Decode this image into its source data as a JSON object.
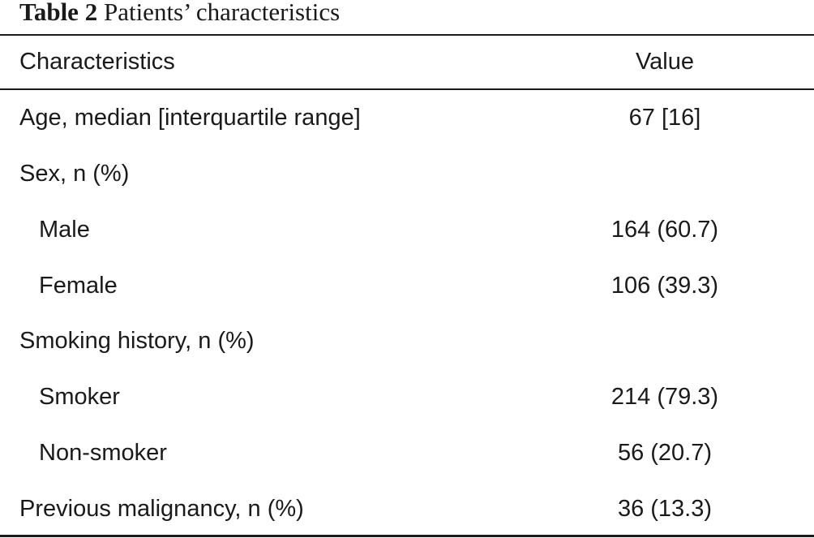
{
  "caption": {
    "label": "Table 2",
    "title": "Patients’ characteristics"
  },
  "table": {
    "headers": [
      "Characteristics",
      "Value"
    ],
    "rows": [
      {
        "label": "Age, median [interquartile range]",
        "value": "67 [16]"
      },
      {
        "label": "Sex, n (%)",
        "value": ""
      },
      {
        "label": "Male",
        "value": "164 (60.7)"
      },
      {
        "label": "Female",
        "value": "106 (39.3)"
      },
      {
        "label": "Smoking history, n (%)",
        "value": ""
      },
      {
        "label": "Smoker",
        "value": "214 (79.3)"
      },
      {
        "label": "Non-smoker",
        "value": "56 (20.7)"
      },
      {
        "label": "Previous malignancy, n (%)",
        "value": "36 (13.3)"
      }
    ]
  }
}
